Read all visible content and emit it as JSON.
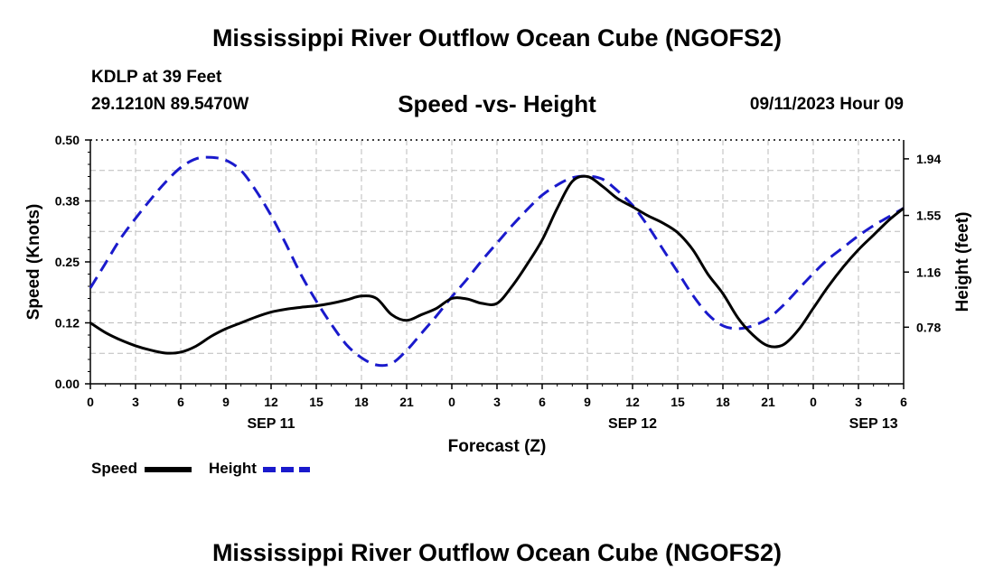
{
  "header": {
    "title": "Mississippi River Outflow Ocean Cube (NGOFS2)",
    "station": "KDLP at 39 Feet",
    "coords": "29.1210N  89.5470W",
    "chart_title": "Speed -vs- Height",
    "date_hour": "09/11/2023 Hour 09"
  },
  "footer": {
    "title": "Mississippi River Outflow Ocean Cube (NGOFS2)"
  },
  "colors": {
    "speed": "#000000",
    "height": "#1a1acc",
    "grid": "#bbbbbb"
  },
  "chart_data": {
    "type": "line",
    "title": "Speed -vs- Height",
    "xlabel": "Forecast (Z)",
    "ylabel_left": "Speed (Knots)",
    "ylabel_right": "Height (feet)",
    "x_range": [
      0,
      54
    ],
    "x_ticks": [
      "0",
      "3",
      "6",
      "9",
      "12",
      "15",
      "18",
      "21",
      "0",
      "3",
      "6",
      "9",
      "12",
      "15",
      "18",
      "21",
      "0",
      "3",
      "6"
    ],
    "date_labels": [
      {
        "label": "SEP 11",
        "x": 12
      },
      {
        "label": "SEP 12",
        "x": 36
      },
      {
        "label": "SEP 13",
        "x": 52
      }
    ],
    "y_left": {
      "min": 0,
      "max": 0.5,
      "ticks": [
        "0.00",
        "0.12",
        "0.25",
        "0.38",
        "0.50"
      ]
    },
    "y_right": {
      "min": 0.39,
      "max": 2.07,
      "ticks": [
        "0.78",
        "1.16",
        "1.55",
        "1.94"
      ]
    },
    "grid": true,
    "series": [
      {
        "name": "Speed",
        "axis": "left",
        "style": "solid",
        "x": [
          0,
          1,
          2,
          3,
          4,
          5,
          6,
          7,
          8,
          9,
          10,
          11,
          12,
          13,
          14,
          15,
          16,
          17,
          18,
          19,
          20,
          21,
          22,
          23,
          24,
          25,
          26,
          27,
          28,
          29,
          30,
          31,
          32,
          33,
          34,
          35,
          36,
          37,
          38,
          39,
          40,
          41,
          42,
          43,
          44,
          45,
          46,
          47,
          48,
          49,
          50,
          51,
          52,
          53,
          54
        ],
        "values": [
          0.125,
          0.105,
          0.09,
          0.078,
          0.069,
          0.063,
          0.065,
          0.077,
          0.097,
          0.113,
          0.125,
          0.137,
          0.147,
          0.153,
          0.157,
          0.16,
          0.165,
          0.172,
          0.18,
          0.175,
          0.142,
          0.13,
          0.142,
          0.155,
          0.175,
          0.174,
          0.165,
          0.165,
          0.2,
          0.245,
          0.295,
          0.36,
          0.415,
          0.425,
          0.405,
          0.38,
          0.363,
          0.345,
          0.33,
          0.31,
          0.275,
          0.225,
          0.185,
          0.135,
          0.1,
          0.078,
          0.08,
          0.11,
          0.155,
          0.2,
          0.24,
          0.275,
          0.305,
          0.335,
          0.36
        ]
      },
      {
        "name": "Height",
        "axis": "right",
        "style": "dashed",
        "x": [
          0,
          1,
          2,
          3,
          4,
          5,
          6,
          7,
          8,
          9,
          10,
          11,
          12,
          13,
          14,
          15,
          16,
          17,
          18,
          19,
          20,
          21,
          22,
          23,
          24,
          25,
          26,
          27,
          28,
          29,
          30,
          31,
          32,
          33,
          34,
          35,
          36,
          37,
          38,
          39,
          40,
          41,
          42,
          43,
          44,
          45,
          46,
          47,
          48,
          49,
          50,
          51,
          52,
          53,
          54
        ],
        "values": [
          1.05,
          1.22,
          1.39,
          1.53,
          1.66,
          1.78,
          1.88,
          1.94,
          1.95,
          1.93,
          1.86,
          1.72,
          1.55,
          1.35,
          1.14,
          0.96,
          0.8,
          0.66,
          0.57,
          0.52,
          0.53,
          0.62,
          0.74,
          0.86,
          0.99,
          1.11,
          1.24,
          1.36,
          1.48,
          1.59,
          1.69,
          1.76,
          1.81,
          1.82,
          1.8,
          1.72,
          1.62,
          1.48,
          1.32,
          1.16,
          1.0,
          0.87,
          0.79,
          0.77,
          0.79,
          0.84,
          0.93,
          1.04,
          1.15,
          1.25,
          1.33,
          1.41,
          1.48,
          1.54,
          1.6
        ]
      }
    ],
    "legend": {
      "position": "bottom-left",
      "items": [
        {
          "label": "Speed",
          "style": "solid"
        },
        {
          "label": "Height",
          "style": "dashed"
        }
      ]
    }
  }
}
